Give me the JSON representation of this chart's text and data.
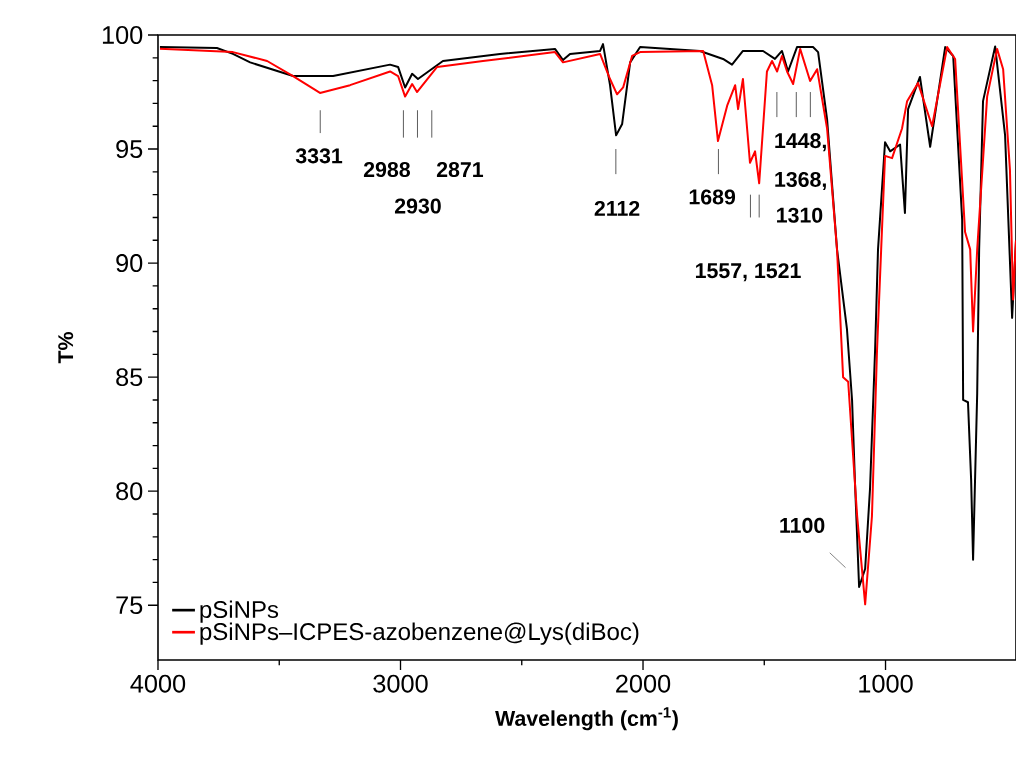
{
  "chart_data": {
    "type": "line",
    "xlabel": "Wavelength (cm$^{-1}$)",
    "ylabel": "T%",
    "xlim": [
      4000,
      462
    ],
    "ylim": [
      72.6,
      100
    ],
    "xticks": [
      4000,
      3000,
      2000,
      1000
    ],
    "yticks": [
      75,
      80,
      85,
      90,
      95,
      100
    ],
    "grid": false,
    "legend": "bottom left",
    "series": [
      {
        "name": "pSiNPs",
        "color": "#000000",
        "x": [
          3992,
          3757,
          3691,
          3620,
          3443,
          3278,
          3043,
          3010,
          2981,
          2952,
          2928,
          2825,
          2590,
          2363,
          2330,
          2301,
          2177,
          2165,
          2136,
          2111,
          2086,
          2053,
          2012,
          1765,
          1670,
          1633,
          1588,
          1505,
          1456,
          1427,
          1402,
          1365,
          1299,
          1278,
          1241,
          1200,
          1159,
          1138,
          1126,
          1109,
          1084,
          1064,
          1043,
          1031,
          1002,
          981,
          940,
          920,
          907,
          858,
          816,
          754,
          721,
          684,
          680,
          660,
          647,
          639,
          622,
          614,
          598,
          548,
          507,
          478,
          462
        ],
        "values": [
          99.47,
          99.43,
          99.17,
          98.8,
          98.2,
          98.2,
          98.7,
          98.6,
          97.7,
          98.3,
          98.07,
          98.86,
          99.17,
          99.39,
          98.9,
          99.17,
          99.3,
          99.6,
          97.8,
          95.6,
          96.1,
          98.8,
          99.47,
          99.3,
          98.95,
          98.7,
          99.3,
          99.3,
          98.95,
          99.3,
          98.4,
          99.47,
          99.47,
          99.25,
          96.3,
          90.6,
          87.1,
          84.0,
          80.4,
          75.8,
          76.6,
          80.1,
          86.2,
          90.6,
          95.3,
          94.9,
          95.2,
          92.2,
          96.75,
          98.16,
          95.1,
          99.47,
          99.08,
          91.9,
          84.0,
          83.9,
          80.5,
          77.0,
          84.3,
          90.6,
          97.1,
          99.5,
          95.6,
          87.6,
          91.0
        ]
      },
      {
        "name": "pSiNPs–ICPES-azobenzene@Lys(diBoc)",
        "color": "#ff0000",
        "x": [
          3992,
          3691,
          3550,
          3443,
          3332,
          3208,
          3043,
          3010,
          2981,
          2952,
          2932,
          2849,
          2660,
          2363,
          2330,
          2177,
          2136,
          2107,
          2082,
          2045,
          2012,
          1752,
          1715,
          1691,
          1653,
          1620,
          1608,
          1588,
          1559,
          1538,
          1521,
          1489,
          1468,
          1447,
          1427,
          1406,
          1381,
          1352,
          1311,
          1282,
          1241,
          1200,
          1175,
          1154,
          1117,
          1084,
          1056,
          1035,
          1018,
          1002,
          973,
          932,
          911,
          866,
          808,
          746,
          713,
          672,
          651,
          639,
          622,
          581,
          540,
          515,
          487,
          474,
          462
        ],
        "values": [
          99.4,
          99.25,
          98.86,
          98.2,
          97.46,
          97.8,
          98.4,
          98.2,
          97.3,
          97.85,
          97.5,
          98.6,
          98.86,
          99.25,
          98.8,
          99.17,
          98.07,
          97.4,
          97.7,
          99.08,
          99.25,
          99.3,
          97.8,
          95.35,
          96.9,
          97.8,
          96.75,
          98.07,
          94.4,
          94.9,
          93.5,
          98.4,
          98.86,
          98.4,
          99.08,
          98.4,
          97.85,
          99.39,
          97.98,
          98.5,
          95.9,
          90.6,
          85.0,
          84.8,
          78.9,
          75.04,
          78.9,
          86.2,
          90.6,
          94.7,
          94.6,
          95.9,
          97.1,
          97.9,
          96.0,
          99.47,
          98.95,
          91.36,
          90.6,
          87.0,
          90.6,
          97.3,
          99.39,
          98.5,
          94.1,
          88.4,
          91.0
        ]
      }
    ],
    "annotations": [
      "3331",
      "2988",
      "2871",
      "2930",
      "2112",
      "1689",
      "1448,",
      "1368,",
      "1310",
      "1557, 1521",
      "1100"
    ]
  }
}
